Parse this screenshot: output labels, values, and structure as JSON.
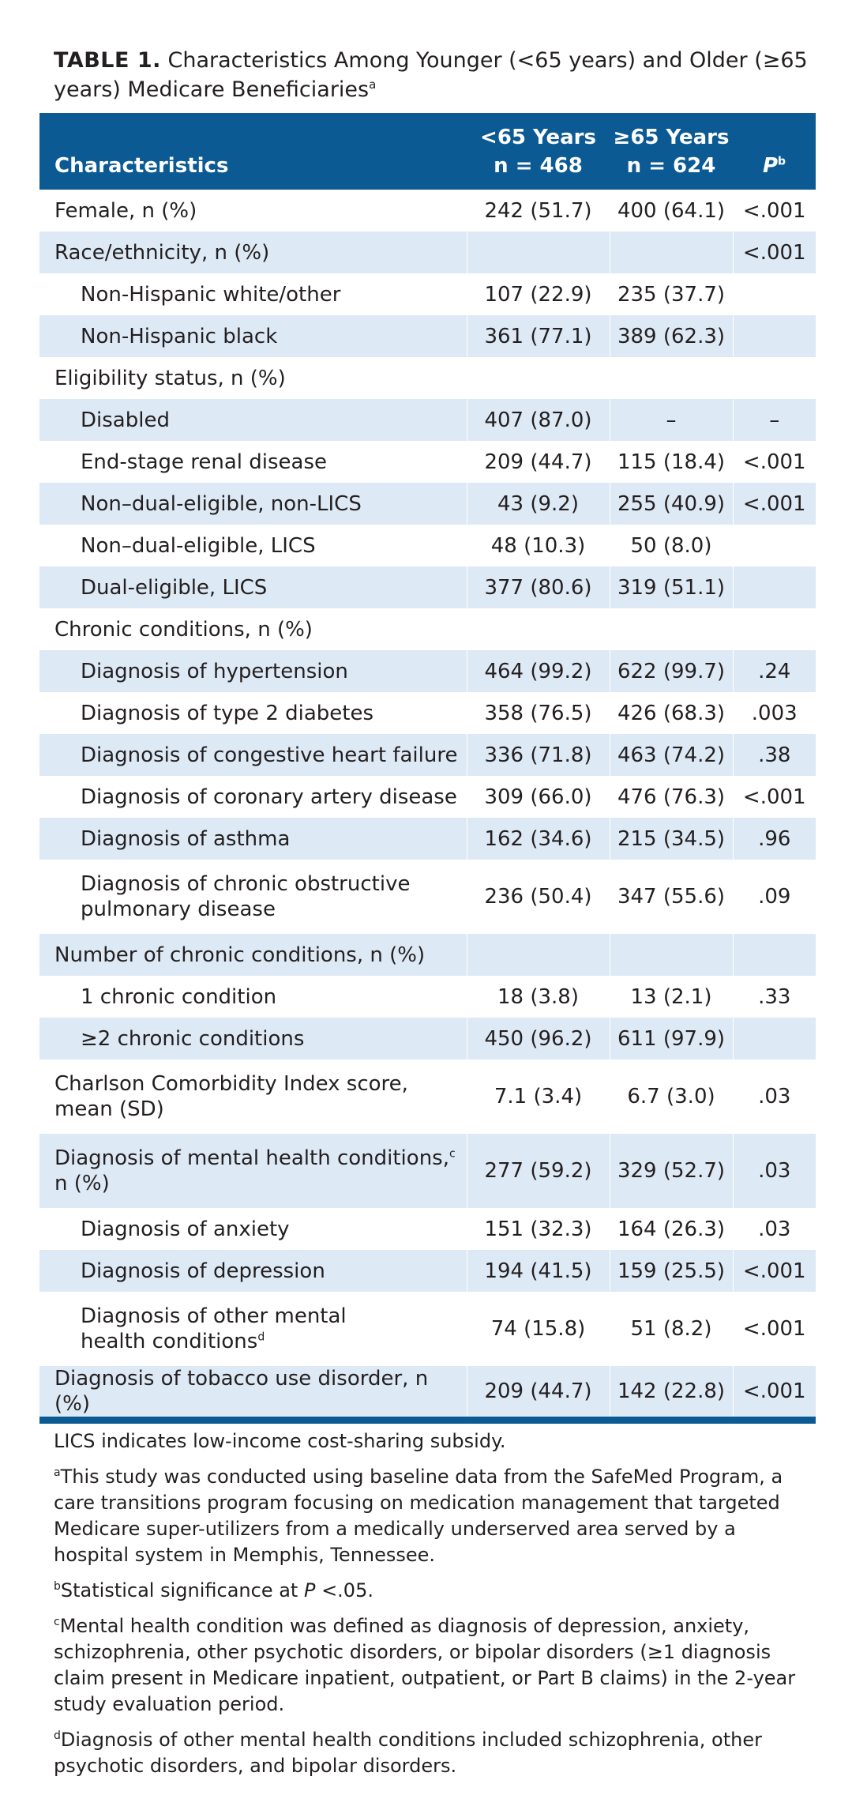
{
  "caption": {
    "label": "TABLE 1.",
    "text": "Characteristics Among Younger (<65 years) and Older (≥65 years) Medicare Beneficiaries",
    "marker": "a"
  },
  "header": {
    "characteristics": "Characteristics",
    "col_young_line1": "<65 Years",
    "col_young_line2": "n = 468",
    "col_old_line1": "≥65 Years",
    "col_old_line2": "n = 624",
    "col_p": "P",
    "col_p_marker": "b"
  },
  "rows": [
    {
      "label": "Female, n (%)",
      "young": "242 (51.7)",
      "old": "400 (64.1)",
      "p": "<.001"
    },
    {
      "label": "Race/ethnicity, n (%)",
      "young": "",
      "old": "",
      "p": "<.001"
    },
    {
      "label": "Non-Hispanic white/other",
      "young": "107 (22.9)",
      "old": "235 (37.7)",
      "p": ""
    },
    {
      "label": "Non-Hispanic black",
      "young": "361 (77.1)",
      "old": "389 (62.3)",
      "p": ""
    },
    {
      "label": "Eligibility status, n (%)",
      "young": "",
      "old": "",
      "p": ""
    },
    {
      "label": "Disabled",
      "young": "407 (87.0)",
      "old": "–",
      "p": "–"
    },
    {
      "label": "End-stage renal disease",
      "young": "209 (44.7)",
      "old": "115 (18.4)",
      "p": "<.001"
    },
    {
      "label": "Non–dual-eligible, non-LICS",
      "young": "43 (9.2)",
      "old": "255 (40.9)",
      "p": "<.001"
    },
    {
      "label": "Non–dual-eligible, LICS",
      "young": "48 (10.3)",
      "old": "50 (8.0)",
      "p": ""
    },
    {
      "label": "Dual-eligible, LICS",
      "young": "377 (80.6)",
      "old": "319 (51.1)",
      "p": ""
    },
    {
      "label": "Chronic conditions, n (%)",
      "young": "",
      "old": "",
      "p": ""
    },
    {
      "label": "Diagnosis of hypertension",
      "young": "464 (99.2)",
      "old": "622 (99.7)",
      "p": ".24"
    },
    {
      "label": "Diagnosis of type 2 diabetes",
      "young": "358 (76.5)",
      "old": "426 (68.3)",
      "p": ".003"
    },
    {
      "label": "Diagnosis of congestive heart failure",
      "young": "336 (71.8)",
      "old": "463 (74.2)",
      "p": ".38"
    },
    {
      "label": "Diagnosis of coronary artery disease",
      "young": "309 (66.0)",
      "old": "476 (76.3)",
      "p": "<.001"
    },
    {
      "label": "Diagnosis of asthma",
      "young": "162 (34.6)",
      "old": "215 (34.5)",
      "p": ".96"
    },
    {
      "label": "Diagnosis of chronic obstructive",
      "label2": "pulmonary disease",
      "young": "236 (50.4)",
      "old": "347 (55.6)",
      "p": ".09"
    },
    {
      "label": "Number of chronic conditions, n (%)",
      "young": "",
      "old": "",
      "p": ""
    },
    {
      "label": "1 chronic condition",
      "young": "18 (3.8)",
      "old": "13 (2.1)",
      "p": ".33"
    },
    {
      "label": "≥2 chronic conditions",
      "young": "450 (96.2)",
      "old": "611 (97.9)",
      "p": ""
    },
    {
      "label": "Charlson Comorbidity Index score,",
      "label2": "mean (SD)",
      "young": "7.1 (3.4)",
      "old": "6.7 (3.0)",
      "p": ".03"
    },
    {
      "label": "Diagnosis of mental health conditions,",
      "marker": "c",
      "label2": "n (%)",
      "young": "277 (59.2)",
      "old": "329 (52.7)",
      "p": ".03"
    },
    {
      "label": "Diagnosis of anxiety",
      "young": "151 (32.3)",
      "old": "164 (26.3)",
      "p": ".03"
    },
    {
      "label": "Diagnosis of depression",
      "young": "194 (41.5)",
      "old": "159 (25.5)",
      "p": "<.001"
    },
    {
      "label": "Diagnosis of other mental",
      "label2": "health conditions",
      "marker2": "d",
      "young": "74 (15.8)",
      "old": "51 (8.2)",
      "p": "<.001"
    },
    {
      "label": "Diagnosis of tobacco use disorder, n (%)",
      "young": "209 (44.7)",
      "old": "142 (22.8)",
      "p": "<.001"
    }
  ],
  "notes": {
    "lics": "LICS indicates low-income cost-sharing subsidy.",
    "a_marker": "a",
    "a": "This study was conducted using baseline data from the SafeMed Program, a care transitions program focusing on medication management that targeted Medicare super-utilizers from a medically underserved area served by a hospital system in Memphis, Tennessee.",
    "b_marker": "b",
    "b_text": "Statistical significance at ",
    "b_italic": "P",
    "b_tail": " <.05.",
    "c_marker": "c",
    "c": "Mental health condition was defined as diagnosis of depression, anxiety, schizophrenia, other psychotic disorders, or bipolar disorders (≥1 diagnosis claim present in Medicare inpatient, outpatient, or Part B claims) in the 2-year study evaluation period.",
    "d_marker": "d",
    "d": "Diagnosis of other mental health conditions included schizophrenia, other psychotic disorders, and bipolar disorders."
  }
}
